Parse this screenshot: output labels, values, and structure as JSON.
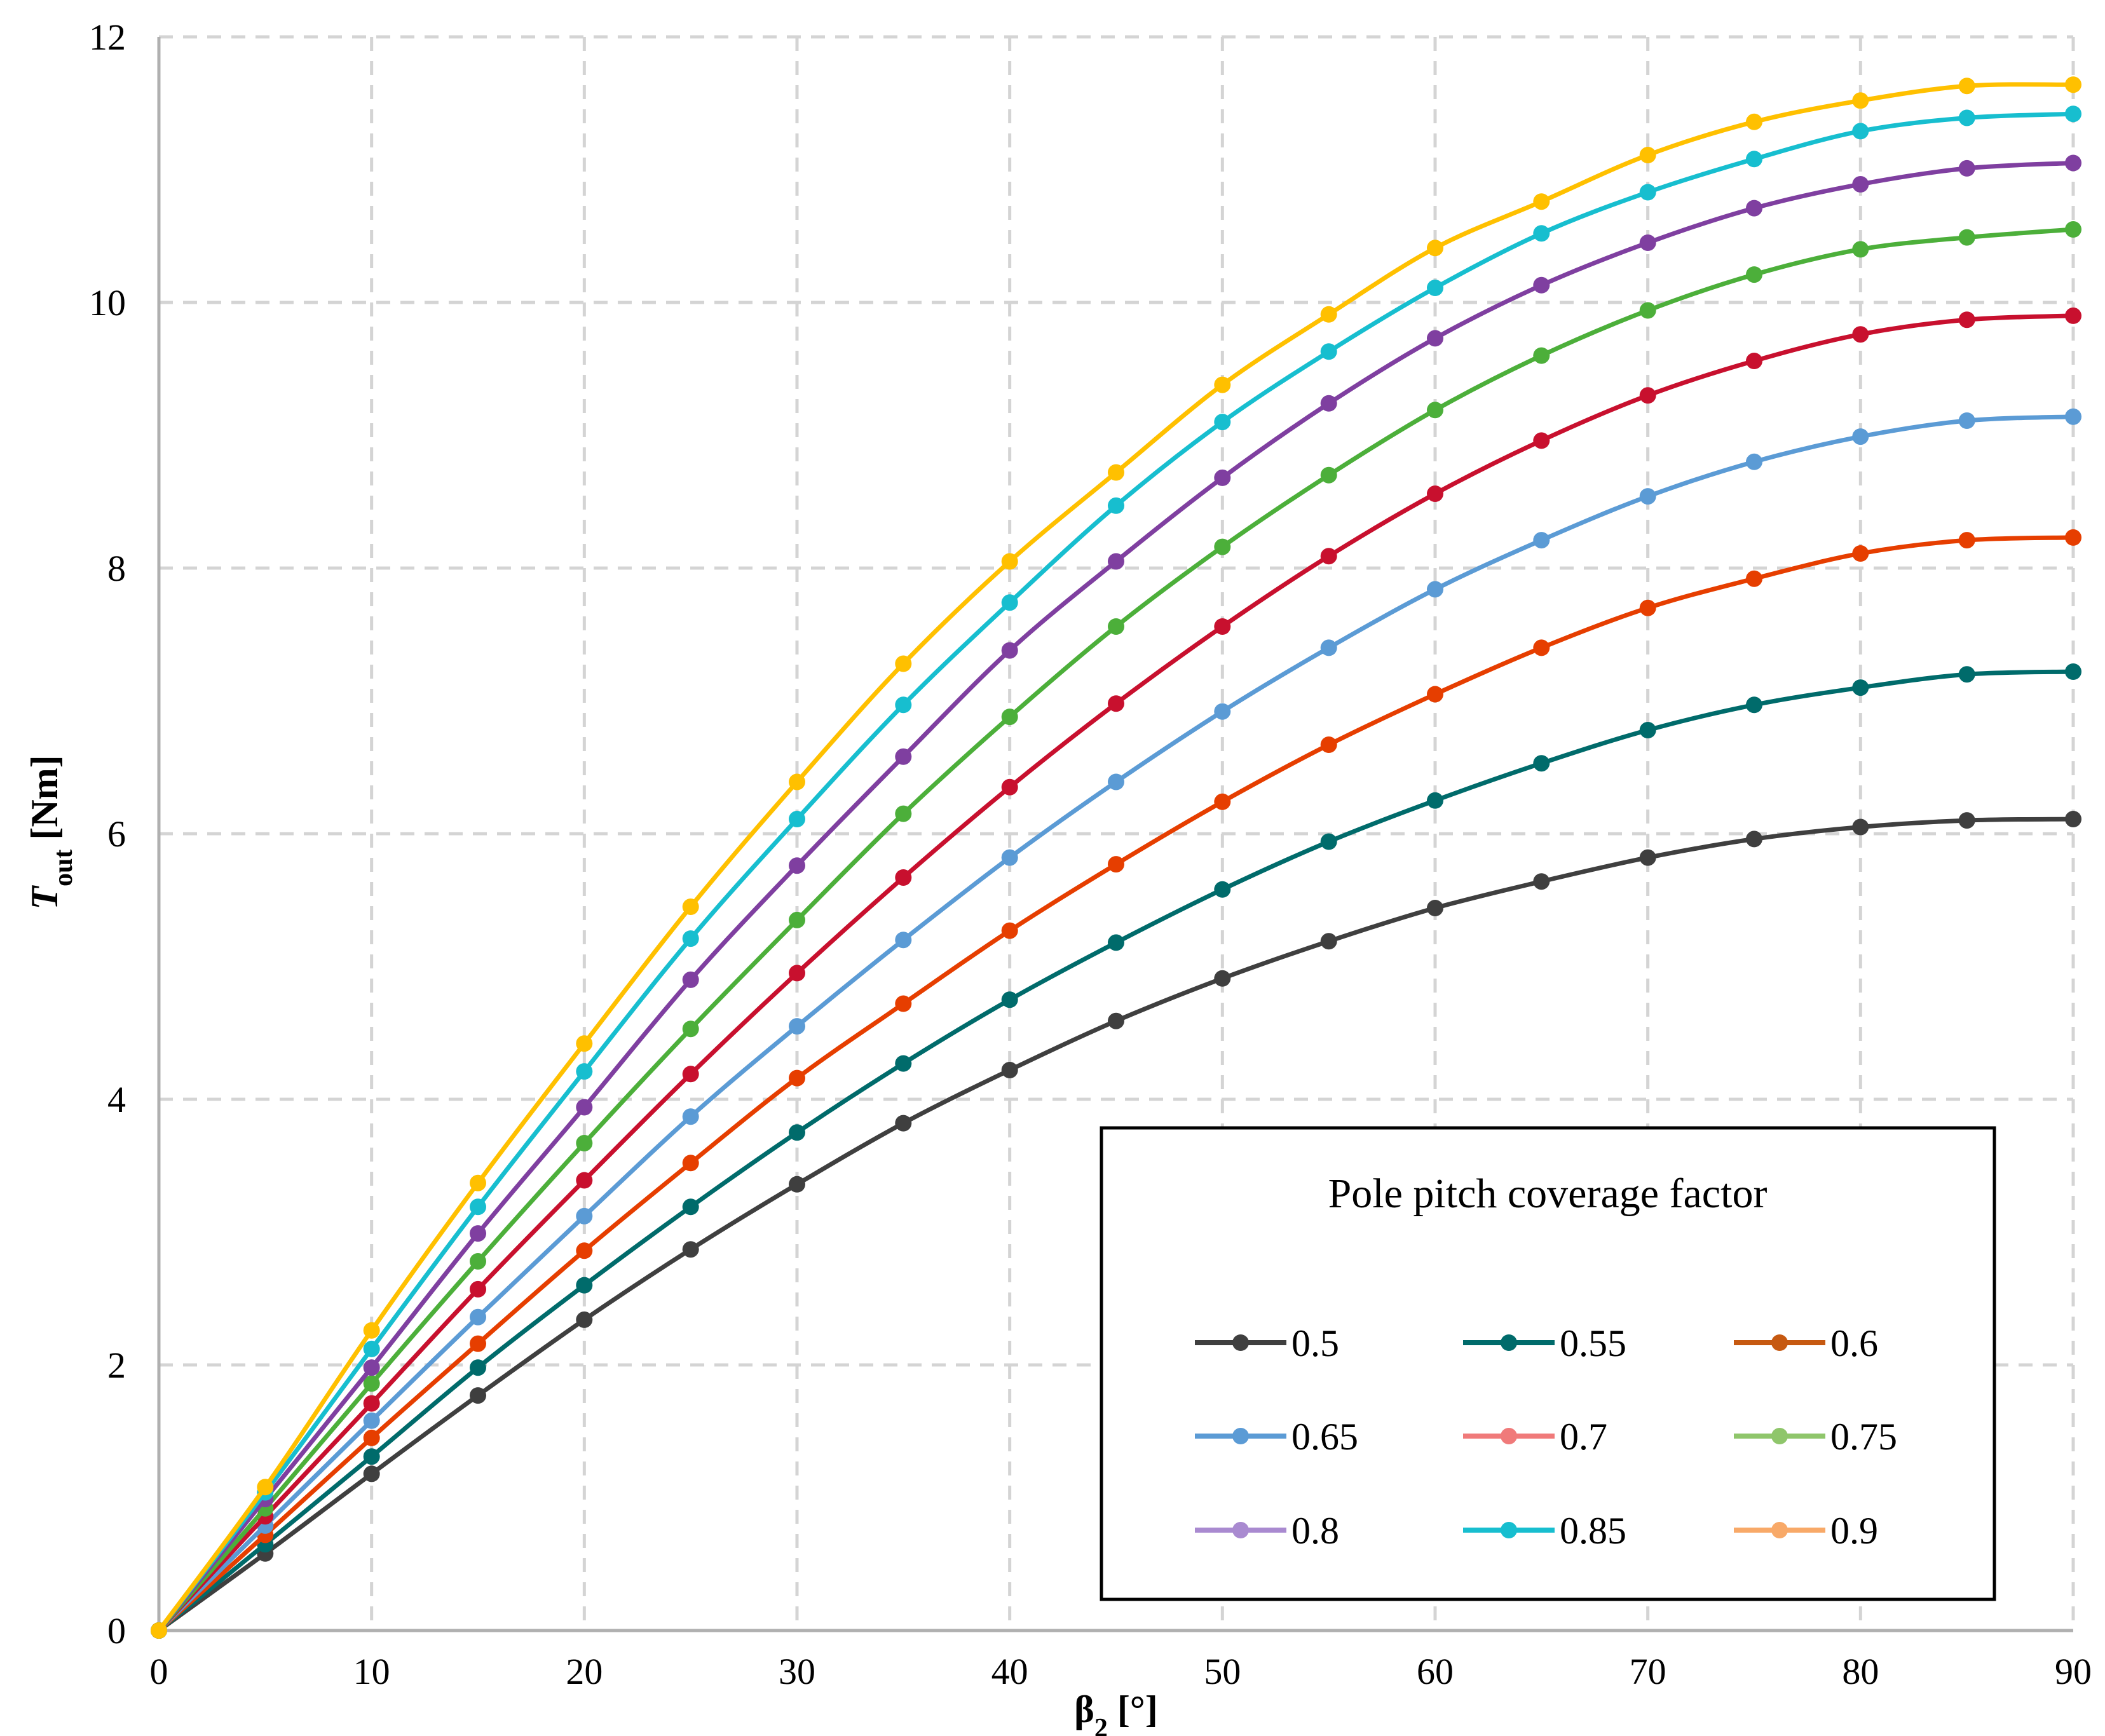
{
  "chart_data": {
    "type": "line",
    "title": "",
    "xlabel": "β",
    "xlabel_sub": "2",
    "xlabel_unit": " [°]",
    "ylabel": "T",
    "ylabel_sub": "out",
    "ylabel_unit": " [Nm]",
    "xlim": [
      0,
      90
    ],
    "ylim": [
      0,
      12
    ],
    "xticks": [
      0,
      10,
      20,
      30,
      40,
      50,
      60,
      70,
      80,
      90
    ],
    "yticks": [
      0,
      2,
      4,
      6,
      8,
      10,
      12
    ],
    "grid": true,
    "legend_title": "Pole pitch coverage factor",
    "legend_position": "bottom-right",
    "x": [
      0,
      5,
      10,
      15,
      20,
      25,
      30,
      35,
      40,
      45,
      50,
      55,
      60,
      65,
      70,
      75,
      80,
      85,
      90
    ],
    "series": [
      {
        "name": "0.5",
        "color": "#3f3f3f",
        "values": [
          0,
          0.58,
          1.18,
          1.77,
          2.34,
          2.87,
          3.36,
          3.82,
          4.22,
          4.59,
          4.91,
          5.19,
          5.44,
          5.64,
          5.82,
          5.96,
          6.05,
          6.1,
          6.11
        ]
      },
      {
        "name": "0.55",
        "color": "#006b6b",
        "values": [
          0,
          0.65,
          1.31,
          1.98,
          2.6,
          3.19,
          3.75,
          4.27,
          4.75,
          5.18,
          5.58,
          5.94,
          6.25,
          6.53,
          6.78,
          6.97,
          7.1,
          7.2,
          7.22
        ]
      },
      {
        "name": "0.6",
        "color": "#e63e00",
        "values": [
          0,
          0.72,
          1.45,
          2.16,
          2.86,
          3.52,
          4.16,
          4.72,
          5.27,
          5.77,
          6.24,
          6.67,
          7.05,
          7.4,
          7.7,
          7.92,
          8.11,
          8.21,
          8.23
        ]
      },
      {
        "name": "0.65",
        "color": "#5b9bd5",
        "values": [
          0,
          0.79,
          1.58,
          2.36,
          3.12,
          3.87,
          4.55,
          5.2,
          5.82,
          6.39,
          6.92,
          7.4,
          7.84,
          8.21,
          8.54,
          8.8,
          8.99,
          9.11,
          9.14
        ]
      },
      {
        "name": "0.7",
        "color": "#c8102e",
        "values": [
          0,
          0.86,
          1.71,
          2.57,
          3.39,
          4.19,
          4.95,
          5.67,
          6.35,
          6.98,
          7.56,
          8.09,
          8.56,
          8.96,
          9.3,
          9.56,
          9.76,
          9.87,
          9.9
        ]
      },
      {
        "name": "0.75",
        "color": "#4caf3a",
        "values": [
          0,
          0.92,
          1.86,
          2.78,
          3.67,
          4.53,
          5.35,
          6.15,
          6.88,
          7.56,
          8.16,
          8.7,
          9.19,
          9.6,
          9.94,
          10.21,
          10.4,
          10.49,
          10.55
        ]
      },
      {
        "name": "0.8",
        "color": "#7f3fa0",
        "values": [
          0,
          0.99,
          1.98,
          2.99,
          3.94,
          4.9,
          5.76,
          6.58,
          7.38,
          8.05,
          8.68,
          9.24,
          9.73,
          10.13,
          10.45,
          10.71,
          10.89,
          11.01,
          11.05
        ]
      },
      {
        "name": "0.85",
        "color": "#17becf",
        "values": [
          0,
          1.04,
          2.12,
          3.19,
          4.21,
          5.21,
          6.11,
          6.97,
          7.74,
          8.47,
          9.1,
          9.63,
          10.11,
          10.52,
          10.83,
          11.08,
          11.29,
          11.39,
          11.42
        ]
      },
      {
        "name": "0.9",
        "color": "#ffc000",
        "values": [
          0,
          1.08,
          2.26,
          3.37,
          4.42,
          5.45,
          6.39,
          7.28,
          8.05,
          8.72,
          9.38,
          9.91,
          10.41,
          10.76,
          11.11,
          11.36,
          11.52,
          11.63,
          11.64
        ]
      }
    ],
    "legend_entries": [
      {
        "name": "0.5",
        "color": "#3f3f3f"
      },
      {
        "name": "0.55",
        "color": "#006b6b"
      },
      {
        "name": "0.6",
        "color": "#c65911"
      },
      {
        "name": "0.65",
        "color": "#5b9bd5"
      },
      {
        "name": "0.7",
        "color": "#f07a7a"
      },
      {
        "name": "0.75",
        "color": "#8fc66b"
      },
      {
        "name": "0.8",
        "color": "#a98ad0"
      },
      {
        "name": "0.85",
        "color": "#17becf"
      },
      {
        "name": "0.9",
        "color": "#f8a968"
      }
    ]
  }
}
